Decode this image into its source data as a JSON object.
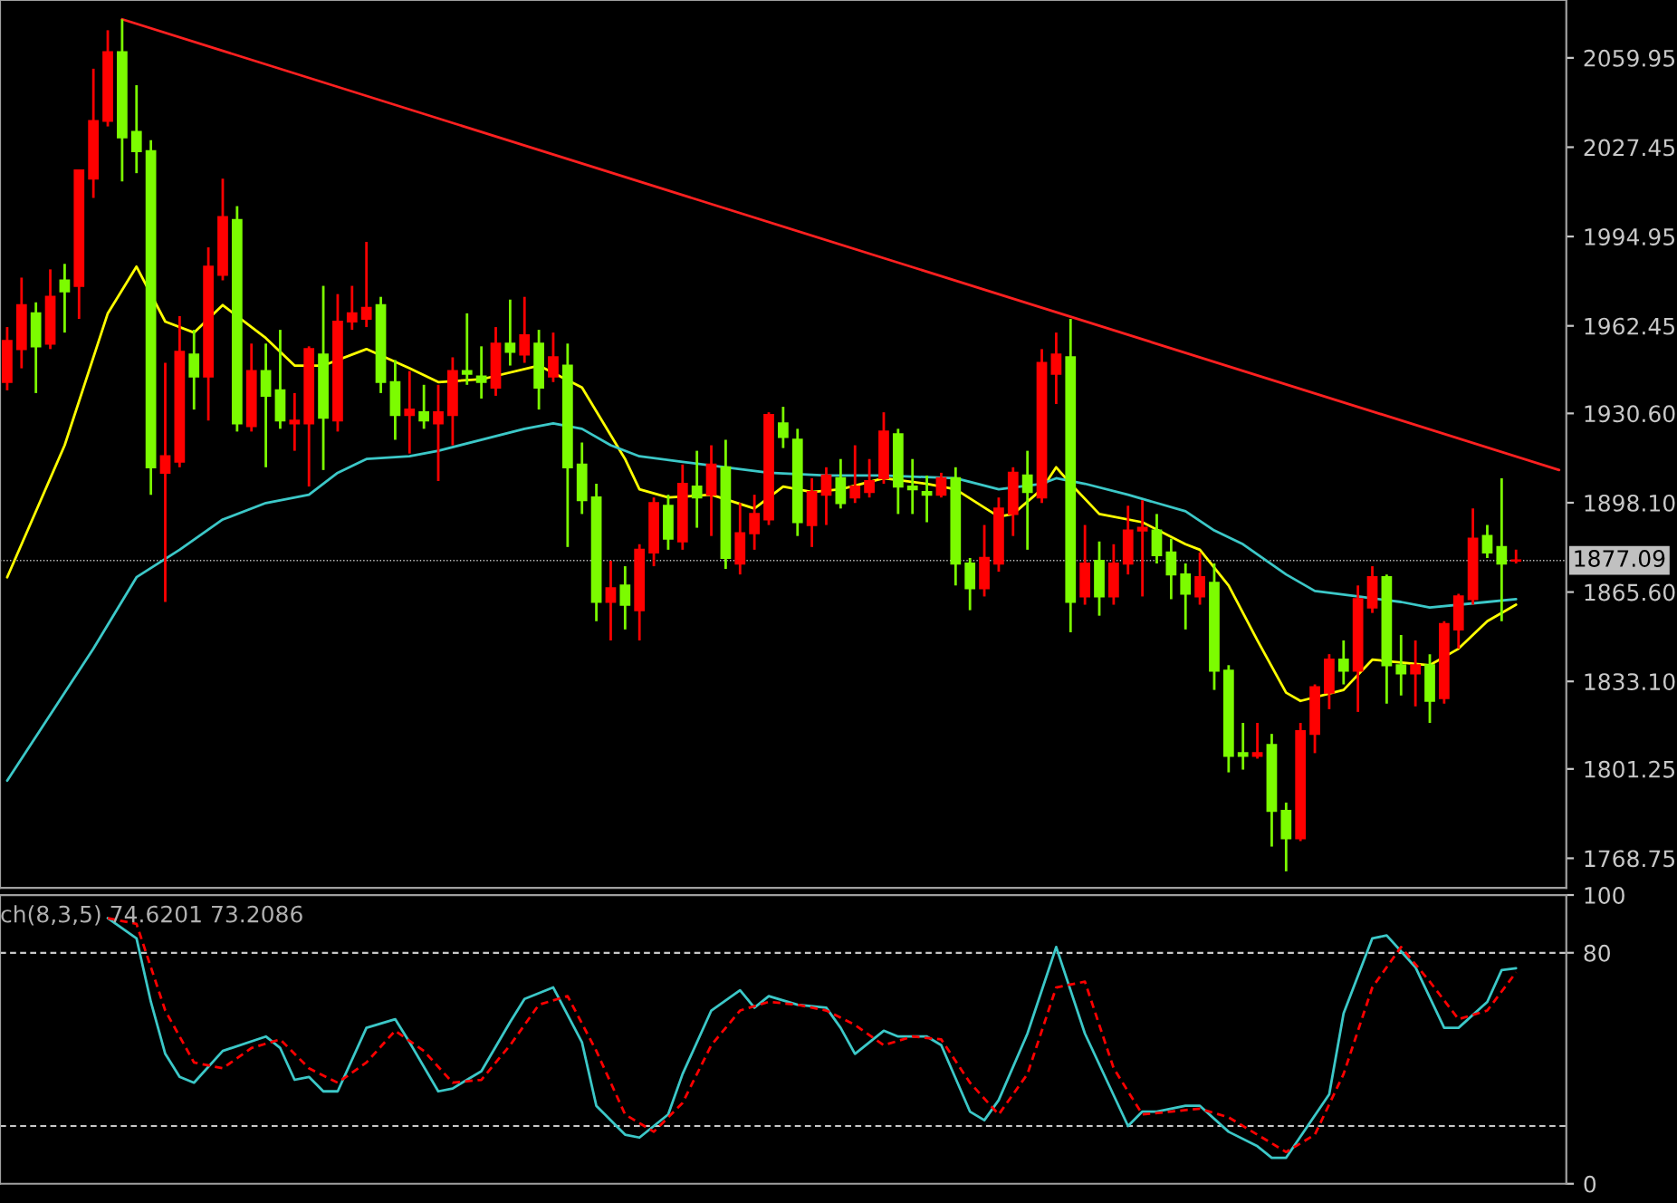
{
  "chart_data": [
    {
      "type": "candlestick",
      "categories": [
        null,
        null,
        null,
        null,
        null,
        null,
        null,
        null,
        null,
        null,
        null,
        null,
        null,
        null,
        null,
        null,
        null,
        null,
        null,
        null,
        null,
        null,
        null,
        null,
        null,
        null,
        null,
        null,
        null,
        null,
        null,
        null,
        null,
        null,
        null,
        null,
        null,
        null,
        null,
        null,
        null,
        null,
        null,
        null,
        null,
        null,
        null,
        null,
        null,
        null,
        null,
        null,
        null,
        null,
        null,
        null,
        null,
        null,
        null,
        null,
        null,
        null,
        null,
        null,
        null,
        null,
        null,
        null,
        null,
        null,
        null,
        null,
        null,
        null,
        null,
        null,
        null,
        null,
        null,
        null,
        null,
        null,
        null,
        null,
        null,
        null,
        null,
        null,
        null,
        null,
        null,
        null,
        null,
        null,
        null,
        null,
        null,
        null,
        null,
        null,
        null,
        null,
        null,
        null,
        null,
        null,
        null,
        null,
        null
      ],
      "ohlc": [
        [
          1942,
          1962,
          1939,
          1957
        ],
        [
          1954,
          1980,
          1947,
          1970
        ],
        [
          1967,
          1971,
          1938,
          1955
        ],
        [
          1956,
          1983,
          1954,
          1973
        ],
        [
          1979,
          1985,
          1960,
          1975
        ],
        [
          1977,
          2019,
          1965,
          2019
        ],
        [
          2016,
          2056,
          2009,
          2037
        ],
        [
          2037,
          2070,
          2035,
          2062
        ],
        [
          2062,
          2074,
          2015,
          2031
        ],
        [
          2033,
          2050,
          2018,
          2026
        ],
        [
          2026,
          2030,
          1901,
          1911
        ],
        [
          1909,
          1949,
          1862,
          1915
        ],
        [
          1913,
          1966,
          1911,
          1953
        ],
        [
          1952,
          1961,
          1932,
          1944
        ],
        [
          1944,
          1991,
          1928,
          1984
        ],
        [
          1981,
          2016,
          1979,
          2002
        ],
        [
          2001,
          2006,
          1924,
          1927
        ],
        [
          1926,
          1956,
          1924,
          1946
        ],
        [
          1946,
          1956,
          1911,
          1937
        ],
        [
          1939,
          1961,
          1925,
          1928
        ],
        [
          1927,
          1938,
          1917,
          1928
        ],
        [
          1927,
          1955,
          1904,
          1954
        ],
        [
          1952,
          1977,
          1910,
          1929
        ],
        [
          1928,
          1974,
          1924,
          1964
        ],
        [
          1964,
          1977,
          1961,
          1967
        ],
        [
          1965,
          1993,
          1962,
          1969
        ],
        [
          1970,
          1973,
          1938,
          1942
        ],
        [
          1942,
          1950,
          1921,
          1930
        ],
        [
          1930,
          1946,
          1916,
          1932
        ],
        [
          1931,
          1941,
          1925,
          1928
        ],
        [
          1927,
          1941,
          1906,
          1931
        ],
        [
          1930,
          1951,
          1919,
          1946
        ],
        [
          1946,
          1967,
          1941,
          1945
        ],
        [
          1944,
          1955,
          1936,
          1942
        ],
        [
          1940,
          1962,
          1937,
          1956
        ],
        [
          1956,
          1972,
          1948,
          1953
        ],
        [
          1952,
          1973,
          1949,
          1959
        ],
        [
          1956,
          1961,
          1932,
          1940
        ],
        [
          1944,
          1960,
          1942,
          1951
        ],
        [
          1948,
          1956,
          1882,
          1911
        ],
        [
          1912,
          1920,
          1894,
          1899
        ],
        [
          1900,
          1905,
          1855,
          1862
        ],
        [
          1862,
          1877,
          1848,
          1867
        ],
        [
          1868,
          1875,
          1852,
          1861
        ],
        [
          1859,
          1883,
          1848,
          1881
        ],
        [
          1880,
          1900,
          1875,
          1898
        ],
        [
          1897,
          1901,
          1881,
          1885
        ],
        [
          1884,
          1912,
          1881,
          1905
        ],
        [
          1904,
          1917,
          1889,
          1900
        ],
        [
          1901,
          1919,
          1886,
          1912
        ],
        [
          1911,
          1921,
          1874,
          1878
        ],
        [
          1876,
          1898,
          1872,
          1887
        ],
        [
          1887,
          1901,
          1881,
          1894
        ],
        [
          1892,
          1931,
          1890,
          1930
        ],
        [
          1927,
          1933,
          1918,
          1922
        ],
        [
          1921,
          1925,
          1886,
          1891
        ],
        [
          1890,
          1907,
          1882,
          1902
        ],
        [
          1901,
          1911,
          1890,
          1908
        ],
        [
          1907,
          1914,
          1896,
          1898
        ],
        [
          1900,
          1919,
          1898,
          1904
        ],
        [
          1902,
          1914,
          1900,
          1906
        ],
        [
          1907,
          1931,
          1905,
          1924
        ],
        [
          1923,
          1925,
          1894,
          1904
        ],
        [
          1904,
          1914,
          1894,
          1903
        ],
        [
          1902,
          1908,
          1891,
          1901
        ],
        [
          1901,
          1909,
          1900,
          1907
        ],
        [
          1907,
          1911,
          1868,
          1876
        ],
        [
          1876,
          1878,
          1859,
          1867
        ],
        [
          1867,
          1890,
          1864,
          1878
        ],
        [
          1876,
          1900,
          1873,
          1896
        ],
        [
          1894,
          1911,
          1886,
          1909
        ],
        [
          1908,
          1917,
          1881,
          1902
        ],
        [
          1900,
          1954,
          1898,
          1949
        ],
        [
          1945,
          1960,
          1934,
          1952
        ],
        [
          1951,
          1965,
          1851,
          1862
        ],
        [
          1864,
          1890,
          1861,
          1876
        ],
        [
          1877,
          1884,
          1857,
          1864
        ],
        [
          1864,
          1883,
          1861,
          1876
        ],
        [
          1876,
          1897,
          1872,
          1888
        ],
        [
          1888,
          1899,
          1864,
          1889
        ],
        [
          1888,
          1894,
          1876,
          1879
        ],
        [
          1880,
          1885,
          1863,
          1872
        ],
        [
          1872,
          1876,
          1852,
          1865
        ],
        [
          1864,
          1880,
          1861,
          1871
        ],
        [
          1869,
          1876,
          1830,
          1837
        ],
        [
          1837,
          1839,
          1800,
          1806
        ],
        [
          1807,
          1818,
          1801,
          1806
        ],
        [
          1806,
          1818,
          1805,
          1807
        ],
        [
          1810,
          1814,
          1773,
          1786
        ],
        [
          1786,
          1789,
          1764,
          1776
        ],
        [
          1776,
          1818,
          1775,
          1815
        ],
        [
          1814,
          1832,
          1807,
          1831
        ],
        [
          1829,
          1843,
          1823,
          1841
        ],
        [
          1841,
          1848,
          1832,
          1837
        ],
        [
          1837,
          1868,
          1822,
          1863
        ],
        [
          1860,
          1875,
          1858,
          1871
        ],
        [
          1871,
          1872,
          1825,
          1839
        ],
        [
          1839,
          1850,
          1828,
          1836
        ],
        [
          1836,
          1848,
          1824,
          1839
        ],
        [
          1839,
          1843,
          1818,
          1826
        ],
        [
          1827,
          1855,
          1825,
          1854
        ],
        [
          1852,
          1865,
          1845,
          1864
        ],
        [
          1863,
          1896,
          1861,
          1885
        ],
        [
          1886,
          1890,
          1878,
          1880
        ],
        [
          1882,
          1907,
          1855,
          1876
        ],
        [
          1877,
          1881,
          1876,
          1877.09
        ],
        null,
        null,
        null
      ],
      "colors": [
        "#ff0000",
        "#ff0000",
        "#7cfc00",
        "#ff0000",
        "#7cfc00",
        "#ff0000",
        "#ff0000",
        "#ff0000",
        "#7cfc00",
        "#7cfc00",
        "#7cfc00",
        "#ff0000",
        "#ff0000",
        "#7cfc00",
        "#ff0000",
        "#ff0000",
        "#7cfc00",
        "#ff0000",
        "#7cfc00",
        "#7cfc00",
        "#ff0000",
        "#ff0000",
        "#7cfc00",
        "#ff0000",
        "#ff0000",
        "#ff0000",
        "#7cfc00",
        "#7cfc00",
        "#ff0000",
        "#7cfc00",
        "#ff0000",
        "#ff0000",
        "#7cfc00",
        "#7cfc00",
        "#ff0000",
        "#7cfc00",
        "#ff0000",
        "#7cfc00",
        "#ff0000",
        "#7cfc00",
        "#7cfc00",
        "#7cfc00",
        "#ff0000",
        "#7cfc00",
        "#ff0000",
        "#ff0000",
        "#7cfc00",
        "#ff0000",
        "#7cfc00",
        "#ff0000",
        "#7cfc00",
        "#ff0000",
        "#ff0000",
        "#ff0000",
        "#7cfc00",
        "#7cfc00",
        "#ff0000",
        "#ff0000",
        "#7cfc00",
        "#ff0000",
        "#ff0000",
        "#ff0000",
        "#7cfc00",
        "#7cfc00",
        "#7cfc00",
        "#ff0000",
        "#7cfc00",
        "#7cfc00",
        "#ff0000",
        "#ff0000",
        "#ff0000",
        "#7cfc00",
        "#ff0000",
        "#ff0000",
        "#7cfc00",
        "#ff0000",
        "#7cfc00",
        "#ff0000",
        "#ff0000",
        "#ff0000",
        "#7cfc00",
        "#7cfc00",
        "#7cfc00",
        "#ff0000",
        "#7cfc00",
        "#7cfc00",
        "#7cfc00",
        "#ff0000",
        "#7cfc00",
        "#7cfc00",
        "#ff0000",
        "#ff0000",
        "#ff0000",
        "#7cfc00",
        "#ff0000",
        "#ff0000",
        "#7cfc00",
        "#7cfc00",
        "#ff0000",
        "#7cfc00",
        "#ff0000",
        "#ff0000",
        "#ff0000",
        "#7cfc00",
        "#7cfc00",
        "#ff0000",
        null,
        null,
        null
      ],
      "series": [
        {
          "type": "line",
          "color": "#ffff00",
          "values": [
            1871,
            null,
            null,
            null,
            1919,
            null,
            null,
            1967,
            null,
            1984,
            null,
            1964,
            null,
            1960,
            null,
            1970,
            null,
            null,
            1958,
            null,
            1948,
            null,
            1948,
            null,
            null,
            1954,
            null,
            null,
            1947,
            null,
            1942,
            null,
            null,
            1943,
            null,
            null,
            null,
            1948,
            null,
            null,
            1940,
            null,
            null,
            1914,
            1903,
            null,
            1900,
            null,
            null,
            1901,
            null,
            null,
            1896,
            null,
            1904,
            null,
            1902,
            null,
            1903,
            null,
            null,
            1907,
            null,
            null,
            1905,
            null,
            1903,
            null,
            null,
            1893,
            1894,
            null,
            1903,
            1911,
            1905,
            null,
            1894,
            null,
            null,
            1891,
            null,
            null,
            1883,
            1881,
            null,
            1868,
            null,
            1848,
            null,
            1829,
            1826,
            null,
            null,
            1830,
            null,
            1841,
            null,
            null,
            null,
            1839,
            null,
            1845,
            null,
            1855,
            null,
            1861,
            null,
            null,
            null
          ]
        },
        {
          "type": "line",
          "color": "#3cc8c8",
          "values": [
            1797,
            null,
            null,
            null,
            null,
            null,
            1845,
            null,
            null,
            1871,
            null,
            null,
            1881,
            null,
            null,
            1892,
            null,
            null,
            1898,
            null,
            null,
            1901,
            null,
            1909,
            null,
            1914,
            null,
            null,
            1915,
            null,
            1917,
            null,
            null,
            null,
            null,
            null,
            1925,
            null,
            1927,
            null,
            1925,
            null,
            1919,
            null,
            1915,
            null,
            null,
            1913,
            null,
            null,
            1911,
            null,
            null,
            1909,
            null,
            null,
            null,
            1908,
            null,
            null,
            null,
            1908,
            null,
            null,
            null,
            null,
            1907,
            null,
            null,
            1903,
            null,
            null,
            1905,
            1907,
            null,
            1905,
            null,
            null,
            1901,
            null,
            1898,
            null,
            1895,
            null,
            1888,
            null,
            1883,
            null,
            null,
            1872,
            null,
            1866,
            null,
            null,
            1864,
            null,
            null,
            1862,
            null,
            1860,
            null,
            null,
            null,
            1862,
            null,
            1863,
            null,
            null,
            null
          ]
        },
        {
          "type": "line",
          "color": "#ff2020",
          "values": [
            null,
            null,
            null,
            null,
            null,
            null,
            null,
            null,
            2074,
            null,
            null,
            null,
            null,
            null,
            null,
            null,
            null,
            null,
            null,
            null,
            null,
            null,
            null,
            null,
            null,
            null,
            null,
            null,
            null,
            null,
            null,
            null,
            null,
            null,
            null,
            null,
            null,
            null,
            null,
            null,
            null,
            null,
            null,
            null,
            null,
            null,
            null,
            null,
            null,
            null,
            null,
            null,
            null,
            null,
            null,
            null,
            null,
            null,
            null,
            null,
            null,
            null,
            null,
            null,
            null,
            null,
            null,
            null,
            null,
            null,
            null,
            null,
            null,
            null,
            null,
            null,
            null,
            null,
            null,
            null,
            null,
            null,
            null,
            null,
            null,
            null,
            null,
            null,
            null,
            null,
            null,
            null,
            null,
            null,
            null,
            null,
            null,
            null,
            null,
            null,
            null,
            null,
            null,
            null,
            null,
            null,
            null,
            null,
            1910
          ]
        }
      ],
      "ylim": [
        1758,
        2081
      ],
      "yticks": [
        {
          "value": 2059.95,
          "label": "2059.95"
        },
        {
          "value": 2027.45,
          "label": "2027.45"
        },
        {
          "value": 1994.95,
          "label": "1994.95"
        },
        {
          "value": 1962.45,
          "label": "1962.45"
        },
        {
          "value": 1930.6,
          "label": "1930.60"
        },
        {
          "value": 1898.1,
          "label": "1898.10"
        },
        {
          "value": 1865.6,
          "label": "1865.60"
        },
        {
          "value": 1833.1,
          "label": "1833.10"
        },
        {
          "value": 1801.25,
          "label": "1801.25"
        },
        {
          "value": 1768.75,
          "label": "1768.75"
        }
      ],
      "ref_lines": [
        {
          "axis": "y",
          "value": 1877.09,
          "label": "1877.09",
          "color": "#c0c0c0"
        }
      ],
      "tick_labels": "y",
      "grid": false
    },
    {
      "type": "line",
      "categories": [
        null,
        null,
        null,
        null,
        null,
        null,
        null,
        null,
        null,
        null,
        null,
        null,
        null,
        null,
        null,
        null,
        null,
        null,
        null,
        null,
        null,
        null,
        null,
        null,
        null,
        null,
        null,
        null,
        null,
        null,
        null,
        null,
        null,
        null,
        null,
        null,
        null,
        null,
        null,
        null,
        null,
        null,
        null,
        null,
        null,
        null,
        null,
        null,
        null,
        null,
        null,
        null,
        null,
        null,
        null,
        null,
        null,
        null,
        null,
        null,
        null,
        null,
        null,
        null,
        null,
        null,
        null,
        null,
        null,
        null,
        null,
        null,
        null,
        null,
        null,
        null,
        null,
        null,
        null,
        null,
        null,
        null,
        null,
        null,
        null,
        null,
        null,
        null,
        null,
        null,
        null,
        null,
        null,
        null,
        null,
        null,
        null,
        null,
        null,
        null,
        null,
        null,
        null,
        null,
        null,
        null,
        null,
        null,
        null
      ],
      "series": [
        {
          "color": "#3cc8c8",
          "line_style": "solid",
          "values": [
            null,
            null,
            null,
            null,
            null,
            null,
            null,
            92,
            null,
            85,
            63,
            45,
            37,
            35,
            null,
            46,
            null,
            null,
            51,
            47,
            36,
            37,
            32,
            32,
            null,
            54,
            null,
            57,
            49,
            null,
            32,
            33,
            null,
            39,
            null,
            56,
            64,
            null,
            68,
            null,
            49,
            27,
            null,
            17,
            16,
            null,
            24,
            38,
            null,
            60,
            null,
            67,
            61,
            65,
            null,
            62,
            null,
            61,
            54,
            45,
            null,
            53,
            51,
            null,
            51,
            48,
            null,
            25,
            22,
            29,
            null,
            52,
            null,
            82,
            null,
            52,
            null,
            null,
            20,
            25,
            25,
            null,
            27,
            27,
            null,
            18,
            null,
            13,
            9,
            9,
            null,
            null,
            31,
            59,
            null,
            85,
            86,
            null,
            75,
            null,
            54,
            54,
            null,
            63,
            74,
            74.6201,
            null,
            null,
            null
          ]
        },
        {
          "color": "#ff0000",
          "line_style": "dashed",
          "values": [
            null,
            null,
            null,
            null,
            null,
            null,
            null,
            92,
            null,
            90,
            null,
            60,
            null,
            42,
            null,
            40,
            null,
            47,
            null,
            50,
            null,
            40,
            null,
            35,
            null,
            42,
            null,
            53,
            null,
            46,
            null,
            35,
            null,
            36,
            null,
            48,
            null,
            62,
            null,
            65,
            null,
            46,
            null,
            24,
            null,
            18,
            null,
            28,
            null,
            48,
            null,
            60,
            null,
            63,
            null,
            62,
            null,
            60,
            null,
            55,
            null,
            48,
            null,
            51,
            null,
            50,
            null,
            35,
            null,
            24,
            null,
            38,
            null,
            68,
            null,
            70,
            null,
            40,
            null,
            24,
            null,
            25,
            null,
            26,
            null,
            23,
            null,
            17,
            null,
            11,
            null,
            17,
            null,
            38,
            null,
            68,
            null,
            82,
            null,
            70,
            null,
            57,
            null,
            60,
            null,
            73.2086,
            null,
            null,
            null
          ]
        }
      ],
      "ylim": [
        0,
        100
      ],
      "yticks": [
        0,
        80,
        100
      ],
      "ref_lines": [
        {
          "axis": "y",
          "value": 80,
          "color": "#c8c8c8",
          "line_style": "dashed"
        },
        {
          "axis": "y",
          "value": 20,
          "color": "#c8c8c8",
          "line_style": "dashed"
        }
      ],
      "annotations": [
        "ch(8,3,5) 74.6201 73.2086"
      ],
      "tick_labels": "y",
      "grid": false
    }
  ]
}
